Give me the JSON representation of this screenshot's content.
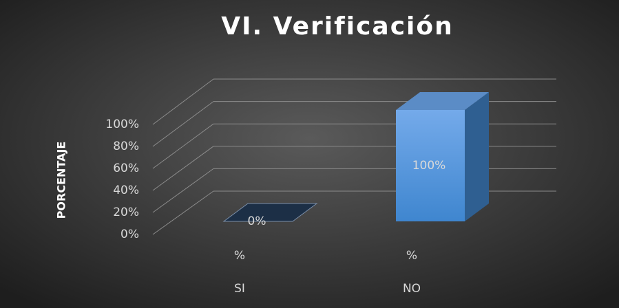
{
  "chart_data": {
    "type": "bar3d",
    "title": "VI. Verificación",
    "y_label": "PORCENTAJE",
    "categories": [
      "SI",
      "NO"
    ],
    "subcategories": [
      "%",
      "%"
    ],
    "values": [
      0,
      100
    ],
    "value_labels": [
      "0%",
      "100%"
    ],
    "color": "#5b9bd5",
    "ylim": [
      0,
      100
    ],
    "yticks": [
      {
        "value": 0,
        "label": "0%"
      },
      {
        "value": 20,
        "label": "20%"
      },
      {
        "value": 40,
        "label": "40%"
      },
      {
        "value": 60,
        "label": "60%"
      },
      {
        "value": 80,
        "label": "80%"
      },
      {
        "value": 100,
        "label": "100%"
      }
    ],
    "grid": true
  }
}
